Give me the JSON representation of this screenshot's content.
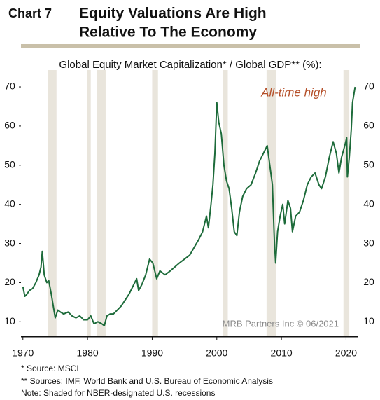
{
  "chart_data": {
    "type": "line",
    "chart_label": "Chart 7",
    "title": [
      "Equity Valuations Are High",
      "Relative To The Economy"
    ],
    "subtitle": "Global Equity Market Capitalization* / Global GDP** (%):",
    "annotation": "All-time high",
    "source": "MRB Partners Inc © 06/2021",
    "footnotes": [
      "*  Source: MSCI",
      "** Sources: IMF, World Bank and U.S. Bureau of Economic Analysis",
      "Note: Shaded for NBER-designated U.S. recessions"
    ],
    "color": "#1d6b3a",
    "recession_color": "#e9e5dc",
    "recessions": [
      [
        1973.9,
        1975.2
      ],
      [
        1979.9,
        1980.5
      ],
      [
        1981.4,
        1982.8
      ],
      [
        1990.0,
        1990.9
      ],
      [
        2000.9,
        2001.7
      ],
      [
        2007.7,
        2009.2
      ],
      [
        2019.6,
        2020.5
      ]
    ],
    "x": [
      1970,
      1970.3,
      1970.6,
      1971,
      1971.5,
      1972,
      1972.5,
      1972.8,
      1973.0,
      1973.3,
      1973.7,
      1974.0,
      1974.4,
      1974.8,
      1975.0,
      1975.4,
      1975.8,
      1976.3,
      1977,
      1977.6,
      1978.2,
      1978.8,
      1979.4,
      1980.0,
      1980.5,
      1981.0,
      1981.6,
      1982.2,
      1982.6,
      1983.0,
      1983.5,
      1984.0,
      1984.6,
      1985.2,
      1985.8,
      1986.4,
      1987.0,
      1987.6,
      1987.9,
      1988.4,
      1989.0,
      1989.6,
      1990.1,
      1990.7,
      1991.2,
      1992.0,
      1992.8,
      1993.5,
      1994.2,
      1995.0,
      1995.8,
      1996.5,
      1997.2,
      1997.8,
      1998.4,
      1998.7,
      1999.1,
      1999.4,
      1999.7,
      2000.0,
      2000.3,
      2000.7,
      2001.1,
      2001.5,
      2001.9,
      2002.3,
      2002.7,
      2003.1,
      2003.5,
      2004.0,
      2004.6,
      2005.3,
      2006.0,
      2006.6,
      2007.2,
      2007.8,
      2008.2,
      2008.6,
      2008.9,
      2009.1,
      2009.4,
      2009.8,
      2010.2,
      2010.5,
      2011.0,
      2011.4,
      2011.7,
      2012.2,
      2012.8,
      2013.4,
      2014.0,
      2014.6,
      2015.2,
      2015.8,
      2016.2,
      2016.8,
      2017.4,
      2018.0,
      2018.5,
      2018.9,
      2019.3,
      2019.8,
      2020.1,
      2020.2,
      2020.5,
      2020.8,
      2021.0,
      2021.2,
      2021.4
    ],
    "values": [
      19,
      16.5,
      17,
      18,
      18.5,
      20,
      22,
      24,
      28,
      22,
      20,
      20.5,
      17,
      13,
      11,
      13,
      12.5,
      12,
      12.5,
      11.5,
      11,
      11.5,
      10.5,
      10.5,
      11.5,
      9.5,
      10,
      9.5,
      9,
      11.5,
      12,
      12,
      13,
      14,
      15.5,
      17,
      19,
      21,
      18,
      19.5,
      22,
      26,
      25,
      21,
      23,
      22,
      23,
      24,
      25,
      26,
      27,
      29,
      31,
      33,
      37,
      34,
      40,
      45,
      53,
      66,
      61,
      58,
      50,
      46,
      44,
      39,
      33,
      32,
      38,
      42,
      44,
      45,
      48,
      51,
      53,
      55,
      50,
      45,
      31,
      25,
      33,
      37,
      40,
      35,
      41,
      39,
      33,
      37,
      38,
      41,
      45,
      47,
      48,
      45,
      44,
      47,
      52,
      56,
      53,
      48,
      52,
      55,
      57,
      47,
      52,
      59,
      66,
      68,
      70
    ],
    "xlim": [
      1969.7,
      2021.9
    ],
    "ylim": [
      6.3,
      74.3
    ],
    "xticks": [
      1970,
      1980,
      1990,
      2000,
      2010,
      2020
    ],
    "yticks": [
      10,
      20,
      30,
      40,
      50,
      60,
      70
    ]
  }
}
